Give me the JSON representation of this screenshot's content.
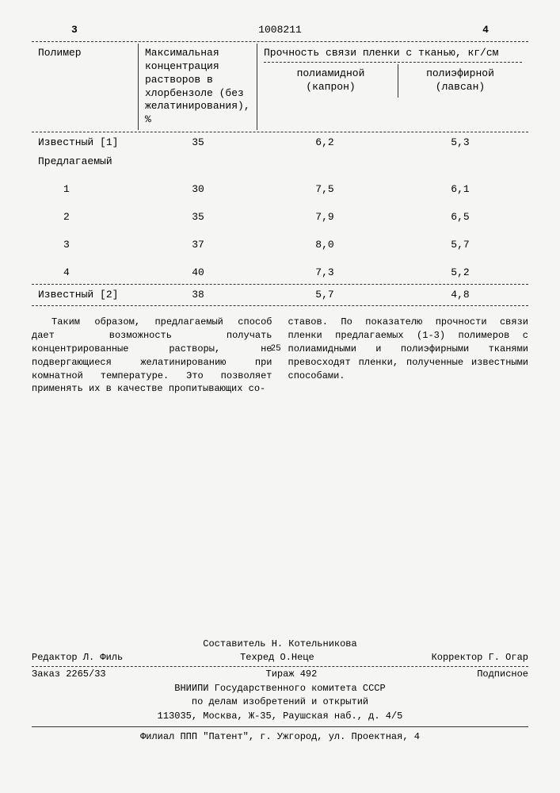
{
  "header": {
    "page_left": "3",
    "patent_number": "1008211",
    "page_right": "4"
  },
  "table": {
    "columns": {
      "polymer": "Полимер",
      "concentration": "Максимальная концентрация растворов в хлорбензоле (без желатинирования), %",
      "strength_header": "Прочность связи пленки с тканью, кг/см",
      "polyamid": "полиамидной (капрон)",
      "polyether": "полиэфирной (лавсан)"
    },
    "rows": [
      {
        "polymer": "Известный [1]",
        "conc": "35",
        "polyamid": "6,2",
        "polyether": "5,3"
      },
      {
        "polymer": "Предлагаемый",
        "conc": "",
        "polyamid": "",
        "polyether": ""
      },
      {
        "polymer": "1",
        "conc": "30",
        "polyamid": "7,5",
        "polyether": "6,1"
      },
      {
        "polymer": "2",
        "conc": "35",
        "polyamid": "7,9",
        "polyether": "6,5"
      },
      {
        "polymer": "3",
        "conc": "37",
        "polyamid": "8,0",
        "polyether": "5,7"
      },
      {
        "polymer": "4",
        "conc": "40",
        "polyamid": "7,3",
        "polyether": "5,2"
      },
      {
        "polymer": "Известный [2]",
        "conc": "38",
        "polyamid": "5,7",
        "polyether": "4,8"
      }
    ]
  },
  "body": {
    "line_marker": "25",
    "left_text": "Таким образом, предлагаемый способ дает возможность получать концентрированные растворы, не подвергающиеся желатинированию при комнатной температуре. Это позволяет применять их в качестве пропитывающих со-",
    "right_text": "ставов. По показателю прочности связи пленки предлагаемых (1-3) полимеров с полиамидными и полиэфирными тканями превосходят пленки, полученные известными способами."
  },
  "footer": {
    "compiler": "Составитель Н. Котельникова",
    "editor": "Редактор Л. Филь",
    "techred": "Техред О.Неце",
    "corrector": "Корректор Г. Огар",
    "order": "Заказ 2265/33",
    "circulation": "Тираж 492",
    "subscription": "Подписное",
    "org1": "ВНИИПИ Государственного комитета СССР",
    "org2": "по делам изобретений и открытий",
    "address1": "113035, Москва, Ж-35, Раушская наб., д. 4/5",
    "branch": "Филиал ППП \"Патент\", г. Ужгород, ул. Проектная, 4"
  }
}
